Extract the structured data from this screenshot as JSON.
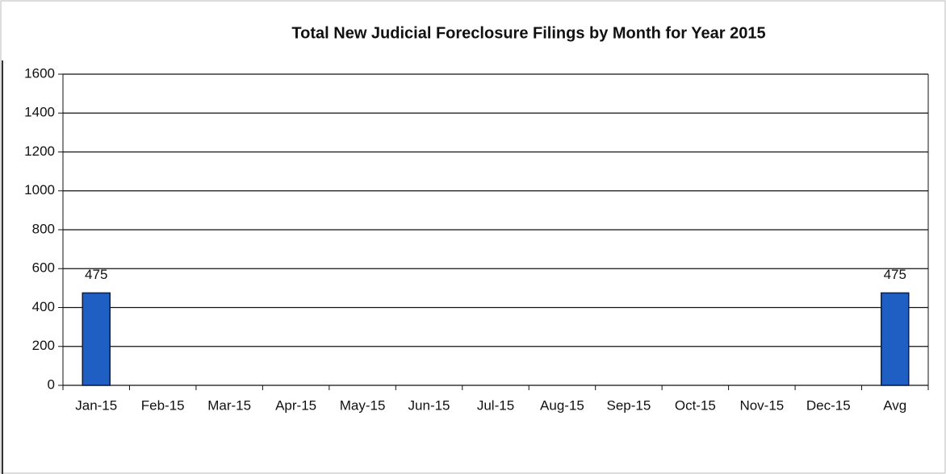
{
  "chart_data": {
    "type": "bar",
    "title": "Total New Judicial Foreclosure Filings by Month for Year 2015",
    "categories": [
      "Jan-15",
      "Feb-15",
      "Mar-15",
      "Apr-15",
      "May-15",
      "Jun-15",
      "Jul-15",
      "Aug-15",
      "Sep-15",
      "Oct-15",
      "Nov-15",
      "Dec-15",
      "Avg"
    ],
    "values": [
      475,
      null,
      null,
      null,
      null,
      null,
      null,
      null,
      null,
      null,
      null,
      null,
      475
    ],
    "color": "#1f5fc4",
    "ylim": [
      0,
      1600
    ],
    "yticks": [
      0,
      200,
      400,
      600,
      800,
      1000,
      1200,
      1400,
      1600
    ],
    "grid": true
  }
}
